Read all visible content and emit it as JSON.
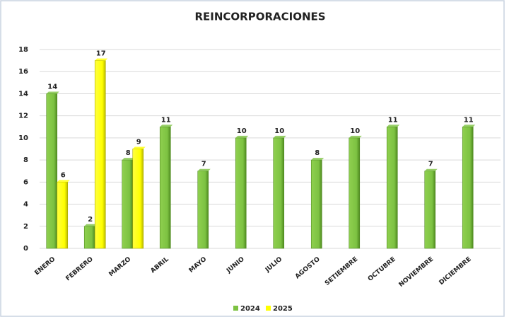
{
  "chart_data": {
    "type": "bar",
    "title": "REINCORPORACIONES",
    "categories": [
      "ENERO",
      "FEBRERO",
      "MARZO",
      "ABRIL",
      "MAYO",
      "JUNIO",
      "JULIO",
      "AGOSTO",
      "SETIEMBRE",
      "OCTUBRE",
      "NOVIEMBRE",
      "DICIEMBRE"
    ],
    "series": [
      {
        "name": "2024",
        "color": "#7dc242",
        "values": [
          14,
          2,
          8,
          11,
          7,
          10,
          10,
          8,
          10,
          11,
          7,
          11
        ]
      },
      {
        "name": "2025",
        "color": "#ffff00",
        "values": [
          6,
          17,
          9,
          null,
          null,
          null,
          null,
          null,
          null,
          null,
          null,
          null
        ]
      }
    ],
    "ylim": [
      0,
      18
    ],
    "yticks": [
      0,
      2,
      4,
      6,
      8,
      10,
      12,
      14,
      16,
      18
    ],
    "grid": true,
    "legend": "bottom"
  }
}
